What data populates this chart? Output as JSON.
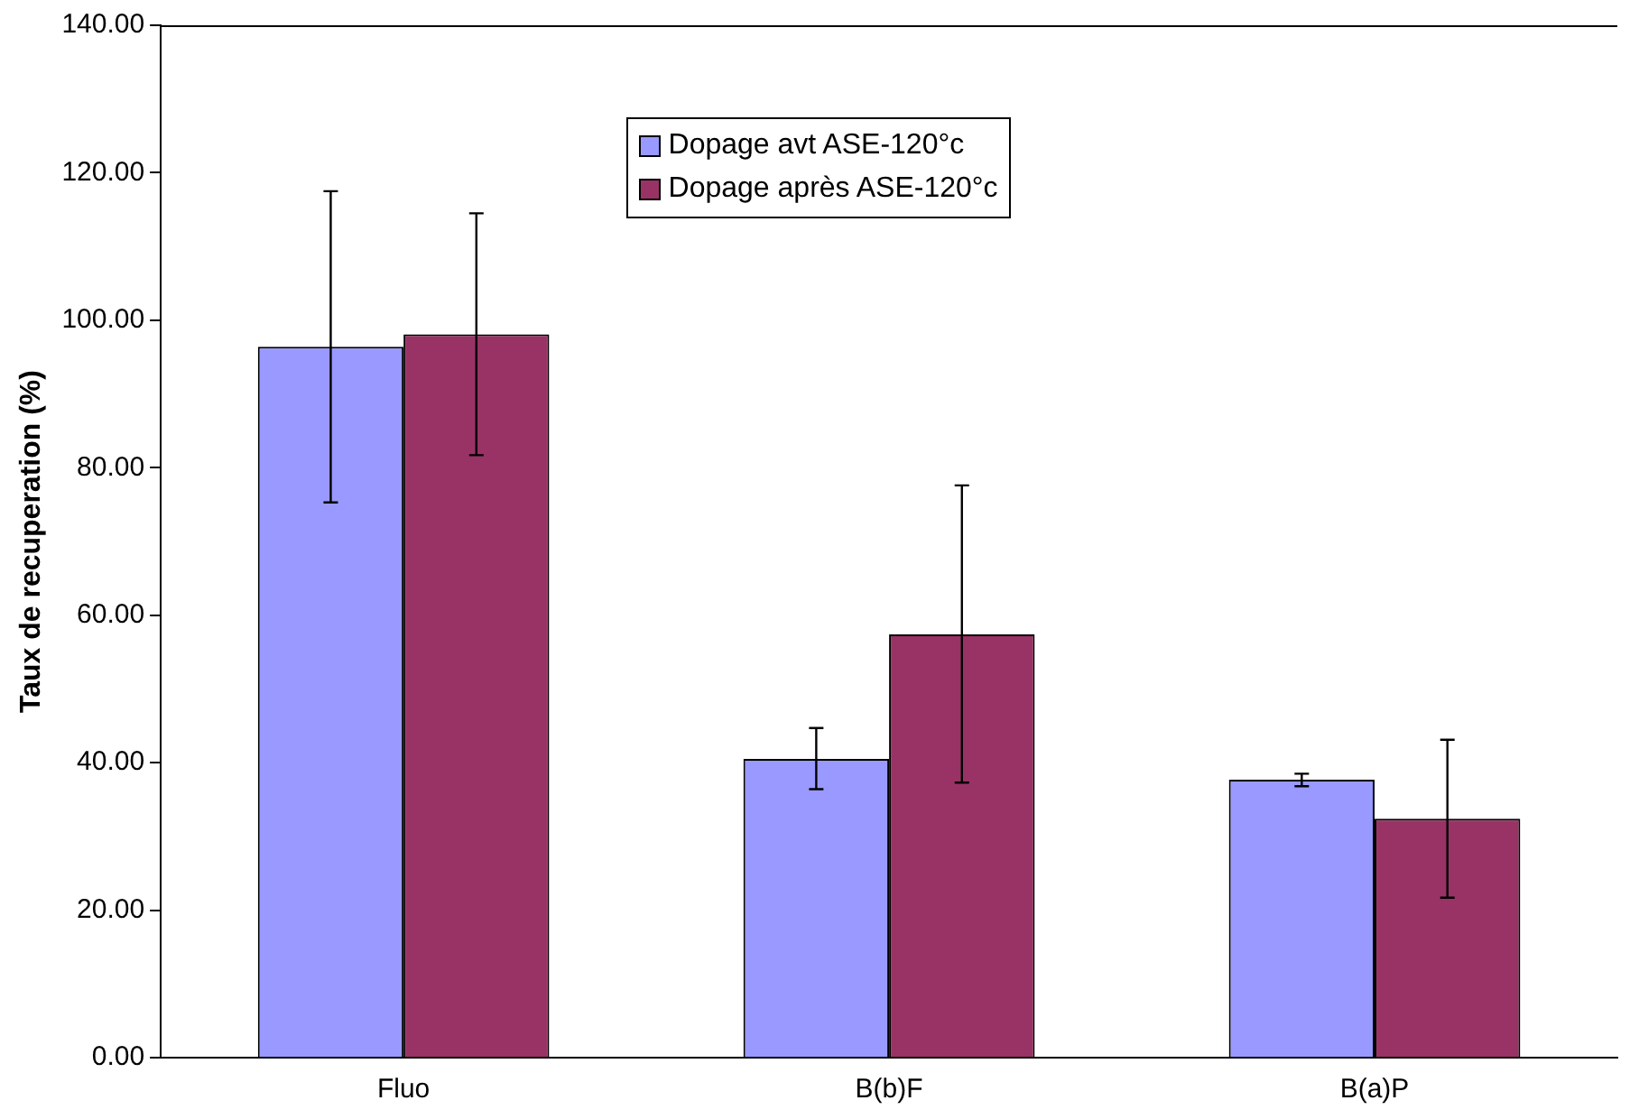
{
  "chart_data": {
    "type": "bar",
    "ylabel": "Taux de recuperation (%)",
    "categories": [
      "Fluo",
      "B(b)F",
      "B(a)P"
    ],
    "series": [
      {
        "name": "Dopage avt ASE-120°c",
        "color": "#9999ff",
        "values": [
          96.4,
          40.5,
          37.7
        ],
        "errors": [
          [
            75.3,
            117.5
          ],
          [
            36.4,
            44.7
          ],
          [
            36.8,
            38.5
          ]
        ]
      },
      {
        "name": "Dopage après ASE-120°c",
        "color": "#993366",
        "values": [
          98.1,
          57.4,
          32.4
        ],
        "errors": [
          [
            81.7,
            114.5
          ],
          [
            37.3,
            77.6
          ],
          [
            21.7,
            43.1
          ]
        ]
      }
    ],
    "ylim": [
      0,
      140
    ],
    "yticks": [
      {
        "value": 0,
        "label": "0.00"
      },
      {
        "value": 20,
        "label": "20.00"
      },
      {
        "value": 40,
        "label": "40.00"
      },
      {
        "value": 60,
        "label": "60.00"
      },
      {
        "value": 80,
        "label": "80.00"
      },
      {
        "value": 100,
        "label": "100.00"
      },
      {
        "value": 120,
        "label": "120.00"
      },
      {
        "value": 140,
        "label": "140.00"
      }
    ],
    "grid": false,
    "legend": "top"
  }
}
